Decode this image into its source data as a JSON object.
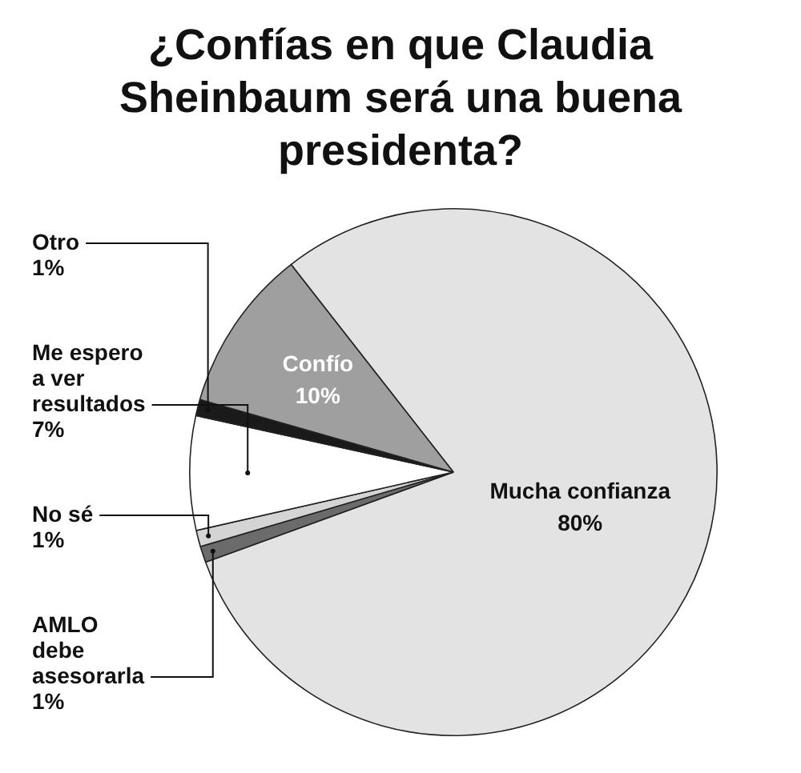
{
  "chart_data": {
    "type": "pie",
    "title": "¿Confías en que Claudia Sheinbaum será una buena presidenta?",
    "categories": [
      "Mucha confianza",
      "AMLO debe asesorarla",
      "No sé",
      "Me espero a ver resultados",
      "Otro",
      "Confío"
    ],
    "values": [
      80,
      1,
      1,
      7,
      1,
      10
    ],
    "colors": [
      "#e3e3e3",
      "#6b6b6b",
      "#d4d4d4",
      "#ffffff",
      "#1a1a1a",
      "#9f9f9f"
    ],
    "value_labels": [
      "80%",
      "1%",
      "1%",
      "7%",
      "1%",
      "10%"
    ]
  }
}
